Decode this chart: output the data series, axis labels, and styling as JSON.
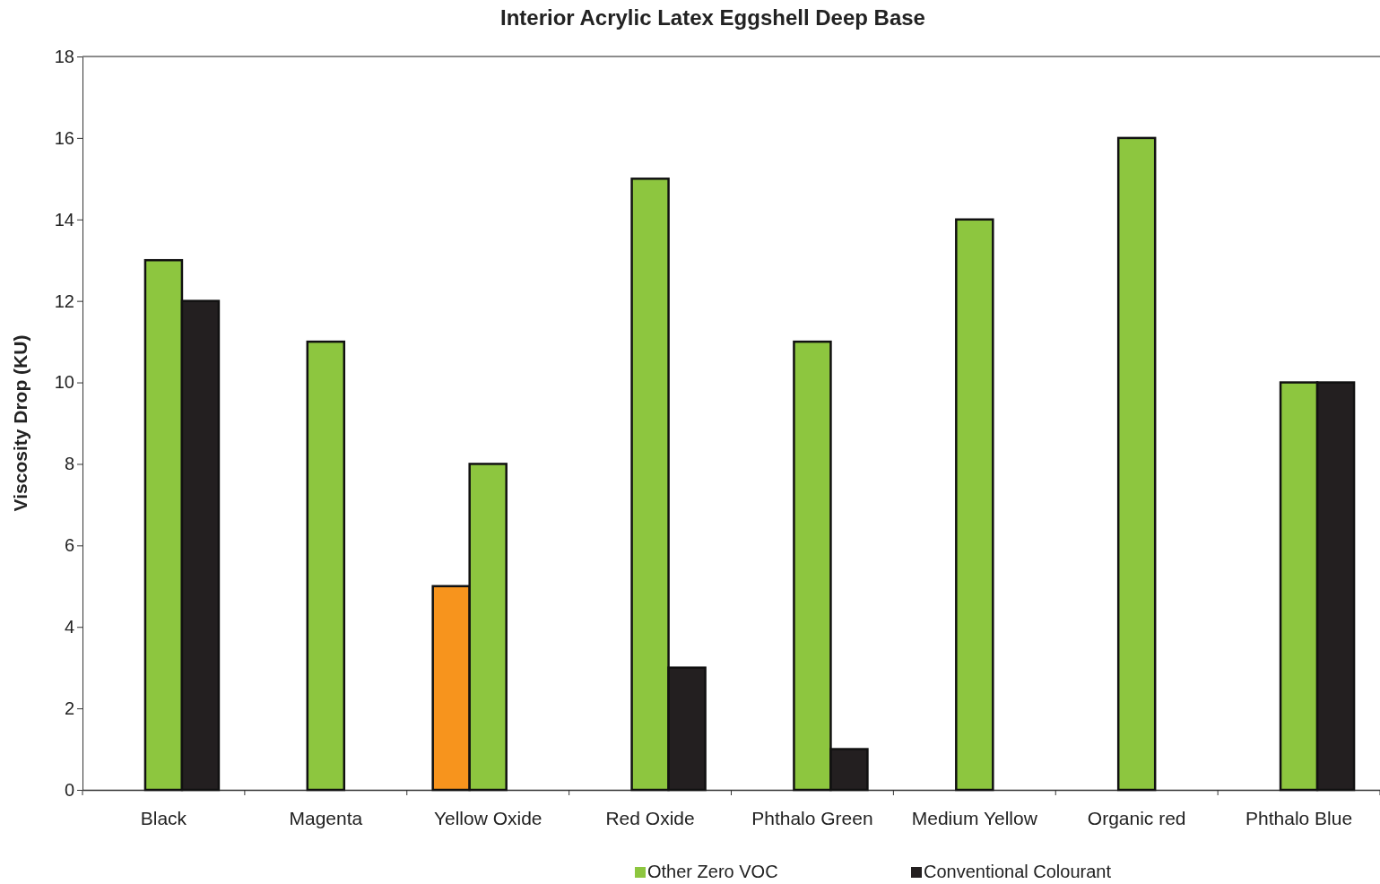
{
  "chart_data": {
    "type": "bar",
    "title": "Interior Acrylic Latex Eggshell Deep Base",
    "ylabel": "Viscosity Drop (KU)",
    "categories": [
      "Black",
      "Magenta",
      "Yellow Oxide",
      "Red Oxide",
      "Phthalo Green",
      "Medium Yellow",
      "Organic red",
      "Phthalo Blue"
    ],
    "series": [
      {
        "color": "#f7941d",
        "values": [
          0,
          0,
          5,
          0,
          0,
          0,
          0,
          0
        ]
      },
      {
        "name": "Other Zero VOC",
        "color": "#8dc63f",
        "values": [
          13,
          11,
          8,
          15,
          11,
          14,
          16,
          10
        ]
      },
      {
        "name": "Conventional Colourant",
        "color": "#231f20",
        "values": [
          12,
          0,
          0,
          3,
          1,
          0,
          0,
          10
        ]
      }
    ],
    "ylim": [
      0,
      18
    ],
    "yticks": [
      0,
      2,
      4,
      6,
      8,
      10,
      12,
      14,
      16,
      18
    ],
    "legend": "bottom"
  }
}
